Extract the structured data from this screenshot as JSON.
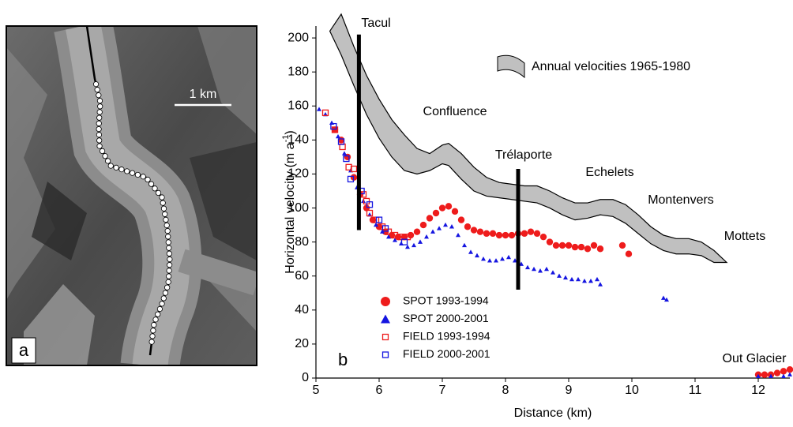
{
  "image_panel": {
    "label": "a",
    "scale_label": "1 km"
  },
  "chart_data": {
    "type": "scatter",
    "panel_label": "b",
    "x_label": "Distance (km)",
    "y_label": "Horizontal velocity (m a",
    "y_label_sup": "-1",
    "y_label_end": ")",
    "xlim": [
      5,
      12.5
    ],
    "xticks": [
      5,
      6,
      7,
      8,
      9,
      10,
      11,
      12
    ],
    "ylim": [
      0,
      207
    ],
    "yticks": [
      0,
      20,
      40,
      60,
      80,
      100,
      120,
      140,
      160,
      180,
      200
    ],
    "legend_position": "lower left",
    "band": {
      "name": "Annual velocities 1965-1980",
      "color": "#c0c0c0",
      "x": [
        5.22,
        5.4,
        5.6,
        5.8,
        6.0,
        6.2,
        6.4,
        6.6,
        6.8,
        7.0,
        7.1,
        7.3,
        7.5,
        7.7,
        7.9,
        8.1,
        8.3,
        8.5,
        8.7,
        8.9,
        9.1,
        9.3,
        9.5,
        9.7,
        9.9,
        10.1,
        10.3,
        10.5,
        10.7,
        10.9,
        11.1,
        11.3,
        11.5
      ],
      "upper": [
        204,
        214,
        195,
        178,
        164,
        152,
        143,
        135,
        132,
        137,
        138,
        132,
        124,
        118,
        115,
        114,
        113,
        113,
        110,
        106,
        103,
        103,
        105,
        105,
        102,
        96,
        89,
        84,
        82,
        82,
        80,
        75,
        68
      ],
      "lower": [
        204,
        190,
        172,
        155,
        141,
        130,
        122,
        120,
        122,
        126,
        125,
        117,
        110,
        107,
        106,
        105,
        104,
        103,
        100,
        96,
        93,
        94,
        96,
        95,
        91,
        85,
        79,
        75,
        73,
        73,
        72,
        68,
        68
      ]
    },
    "vertical_bars": [
      {
        "name": "Tacul",
        "x": 5.68,
        "y": [
          87,
          202
        ]
      },
      {
        "name": "Trélaporte",
        "x": 8.2,
        "y": [
          52,
          123
        ]
      }
    ],
    "annotations": [
      "Confluence",
      "Echelets",
      "Montenvers",
      "Mottets",
      "Out Glacier"
    ],
    "series": [
      {
        "name": "SPOT 1993-1994",
        "color": "#ee1c1c",
        "marker": "circle",
        "x": [
          5.3,
          5.4,
          5.5,
          5.6,
          5.7,
          5.8,
          5.9,
          6.0,
          6.1,
          6.2,
          6.3,
          6.4,
          6.5,
          6.6,
          6.7,
          6.8,
          6.9,
          7.0,
          7.1,
          7.2,
          7.3,
          7.4,
          7.5,
          7.6,
          7.7,
          7.8,
          7.9,
          8.0,
          8.1,
          8.2,
          8.3,
          8.4,
          8.5,
          8.6,
          8.7,
          8.8,
          8.9,
          9.0,
          9.1,
          9.2,
          9.3,
          9.4,
          9.5,
          9.85,
          9.95,
          12.0,
          12.1,
          12.2,
          12.3,
          12.4,
          12.5
        ],
        "values": [
          146,
          140,
          130,
          118,
          108,
          100,
          93,
          89,
          86,
          84,
          83,
          83,
          84,
          86,
          90,
          94,
          97,
          100,
          101,
          98,
          93,
          89,
          87,
          86,
          85,
          85,
          84,
          84,
          84,
          85,
          85,
          86,
          85,
          83,
          80,
          78,
          78,
          78,
          77,
          77,
          76,
          78,
          76,
          78,
          73,
          2,
          2,
          2,
          3,
          4,
          5
        ]
      },
      {
        "name": "SPOT 2000-2001",
        "color": "#1515e0",
        "marker": "triangle",
        "x": [
          5.05,
          5.15,
          5.25,
          5.35,
          5.45,
          5.55,
          5.65,
          5.75,
          5.85,
          5.95,
          6.05,
          6.15,
          6.25,
          6.35,
          6.45,
          6.55,
          6.65,
          6.75,
          6.85,
          6.95,
          7.05,
          7.15,
          7.25,
          7.35,
          7.45,
          7.55,
          7.65,
          7.75,
          7.85,
          7.95,
          8.05,
          8.15,
          8.25,
          8.35,
          8.45,
          8.55,
          8.65,
          8.75,
          8.85,
          8.95,
          9.05,
          9.15,
          9.25,
          9.35,
          9.45,
          9.5,
          10.5,
          10.55,
          12.0,
          12.2,
          12.4,
          12.5
        ],
        "values": [
          158,
          155,
          150,
          142,
          132,
          122,
          112,
          104,
          96,
          90,
          86,
          83,
          81,
          79,
          77,
          78,
          80,
          83,
          86,
          88,
          90,
          89,
          84,
          78,
          74,
          72,
          70,
          69,
          69,
          70,
          71,
          69,
          67,
          65,
          64,
          63,
          64,
          62,
          60,
          59,
          58,
          58,
          57,
          57,
          58,
          55,
          47,
          46,
          1,
          1,
          1,
          2
        ]
      },
      {
        "name": "FIELD 1993-1994",
        "color": "#ee1c1c",
        "marker": "square",
        "x": [
          5.15,
          5.3,
          5.42,
          5.52,
          5.6,
          5.75,
          5.8,
          5.85,
          5.95,
          6.05,
          6.15,
          6.25,
          6.35,
          6.45
        ],
        "values": [
          156,
          146,
          136,
          124,
          123,
          108,
          104,
          97,
          93,
          89,
          86,
          84,
          83,
          83
        ]
      },
      {
        "name": "FIELD 2000-2001",
        "color": "#1515e0",
        "marker": "square",
        "x": [
          5.28,
          5.4,
          5.48,
          5.55,
          5.72,
          5.85,
          6.0,
          6.1,
          6.4
        ],
        "values": [
          148,
          139,
          129,
          117,
          110,
          102,
          93,
          88,
          80
        ]
      }
    ]
  }
}
